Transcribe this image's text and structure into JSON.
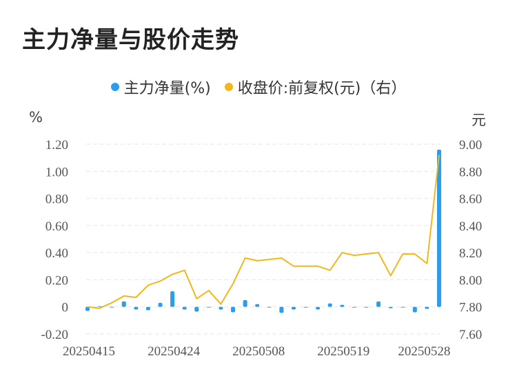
{
  "title": "主力净量与股价走势",
  "legend": {
    "net_volume": "主力净量(%)",
    "close_price": "收盘价:前复权(元)（右）"
  },
  "colors": {
    "net_volume": "#2c9cec",
    "close_price": "#f4b61a",
    "grid": "#e6e6e6"
  },
  "chart_data": {
    "type": "bar",
    "title": "主力净量与股价走势",
    "left_axis": {
      "unit": "%",
      "ylim": [
        -0.2,
        1.2
      ],
      "ticks": [
        "-0.20",
        "0",
        "0.20",
        "0.40",
        "0.60",
        "0.80",
        "1.00",
        "1.20"
      ]
    },
    "right_axis": {
      "unit": "元",
      "ylim": [
        7.6,
        9.0
      ],
      "ticks": [
        "7.60",
        "7.80",
        "8.00",
        "8.20",
        "8.40",
        "8.60",
        "8.80",
        "9.00"
      ]
    },
    "x_tick_labels": [
      "20250415",
      "20250424",
      "20250508",
      "20250519",
      "20250528"
    ],
    "x_tick_index": [
      0,
      7,
      14,
      21,
      28
    ],
    "grid": true,
    "legend_position": "top",
    "series": [
      {
        "name": "主力净量(%)",
        "type": "bar",
        "axis": "left",
        "values": [
          -0.03,
          0.005,
          0,
          0.04,
          -0.02,
          -0.025,
          0.03,
          0.115,
          -0.02,
          -0.035,
          -0.005,
          -0.02,
          -0.04,
          0.05,
          0.02,
          0,
          -0.045,
          -0.02,
          0,
          -0.02,
          0.025,
          0.015,
          -0.005,
          -0.005,
          0.04,
          -0.01,
          0,
          -0.04,
          -0.015,
          1.16
        ]
      },
      {
        "name": "收盘价:前复权(元)（右）",
        "type": "line",
        "axis": "right",
        "values": [
          7.8,
          7.79,
          7.83,
          7.88,
          7.87,
          7.96,
          7.99,
          8.04,
          8.07,
          7.86,
          7.92,
          7.82,
          7.97,
          8.16,
          8.14,
          8.15,
          8.16,
          8.1,
          8.1,
          8.1,
          8.07,
          8.2,
          8.18,
          8.19,
          8.2,
          8.03,
          8.19,
          8.19,
          8.12,
          8.92
        ]
      }
    ]
  }
}
